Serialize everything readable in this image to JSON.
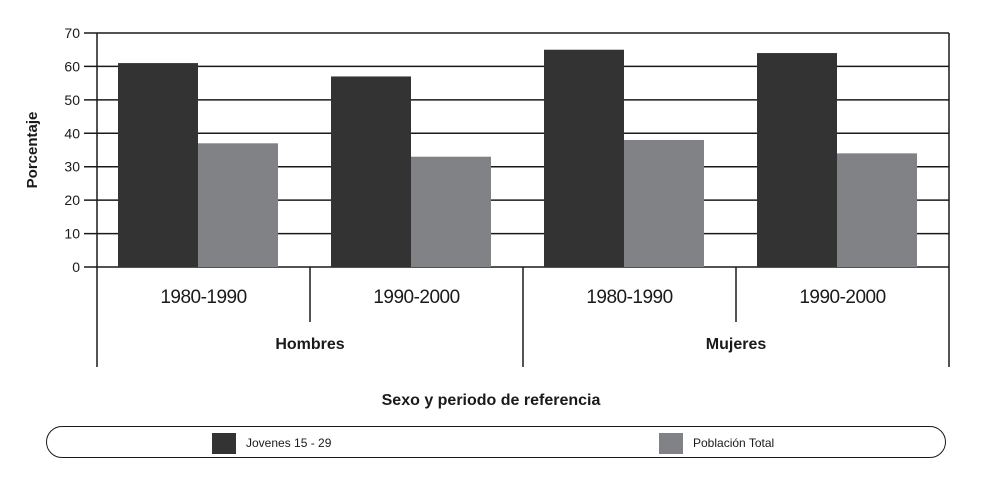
{
  "chart_data": {
    "type": "bar",
    "title": "",
    "xlabel": "Sexo y periodo de referencia",
    "ylabel": "Porcentaje",
    "ylim": [
      0,
      70
    ],
    "yticks": [
      0,
      10,
      20,
      30,
      40,
      50,
      60,
      70
    ],
    "grid": true,
    "groups": [
      {
        "label": "Hombres",
        "categories": [
          "1980-1990",
          "1990-2000"
        ]
      },
      {
        "label": "Mujeres",
        "categories": [
          "1980-1990",
          "1990-2000"
        ]
      }
    ],
    "categories": [
      "Hombres 1980-1990",
      "Hombres 1990-2000",
      "Mujeres 1980-1990",
      "Mujeres 1990-2000"
    ],
    "series": [
      {
        "name": "Jovenes 15 - 29",
        "color": "#333333",
        "values": [
          61,
          57,
          65,
          64
        ]
      },
      {
        "name": "Población Total",
        "color": "#818285",
        "values": [
          37,
          33,
          38,
          34
        ]
      }
    ],
    "legend_position": "bottom"
  },
  "axis": {
    "ylabel": "Porcentaje",
    "xlabel": "Sexo y periodo de referencia"
  },
  "legend": {
    "items": [
      {
        "label": "Jovenes 15 - 29",
        "color": "#333333"
      },
      {
        "label": "Población Total",
        "color": "#818285"
      }
    ]
  }
}
